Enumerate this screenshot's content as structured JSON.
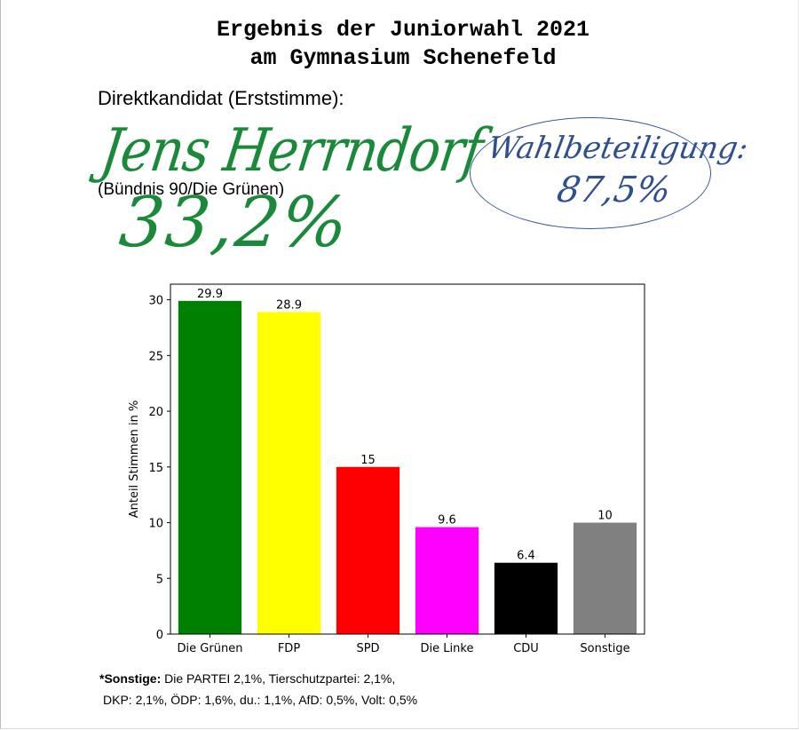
{
  "header": {
    "title_line1": "Ergebnis der Juniorwahl 2021",
    "title_line2": "am Gymnasium Schenefeld"
  },
  "candidate": {
    "label": "Direktkandidat (Erststimme):",
    "name": "Jens Herrndorf",
    "party": "(Bündnis 90/Die Grünen)",
    "percent": "33,2%",
    "ink_color": "#1a8a3a"
  },
  "turnout": {
    "label": "Wahlbeteiligung:",
    "value": "87,5%",
    "ink_color": "#2f4f8f"
  },
  "chart_data": {
    "type": "bar",
    "categories": [
      "Die Grünen",
      "FDP",
      "SPD",
      "Die Linke",
      "CDU",
      "Sonstige"
    ],
    "values": [
      29.9,
      28.9,
      15,
      9.6,
      6.4,
      10
    ],
    "value_labels": [
      "29.9",
      "28.9",
      "15",
      "9.6",
      "6.4",
      "10"
    ],
    "colors": [
      "#008000",
      "#ffff00",
      "#ff0000",
      "#ff00ff",
      "#000000",
      "#808080"
    ],
    "ylabel": "Anteil Stimmen in %",
    "xlabel": "",
    "ylim": [
      0,
      31.4
    ],
    "yticks": [
      0,
      5,
      10,
      15,
      20,
      25,
      30
    ],
    "grid": false
  },
  "footnote": {
    "bold_prefix": "*Sonstige:",
    "line1_rest": " Die PARTEI 2,1%, Tierschutzpartei: 2,1%,",
    "line2": "DKP: 2,1%, ÖDP: 1,6%, du.: 1,1%, AfD: 0,5%, Volt: 0,5%"
  }
}
